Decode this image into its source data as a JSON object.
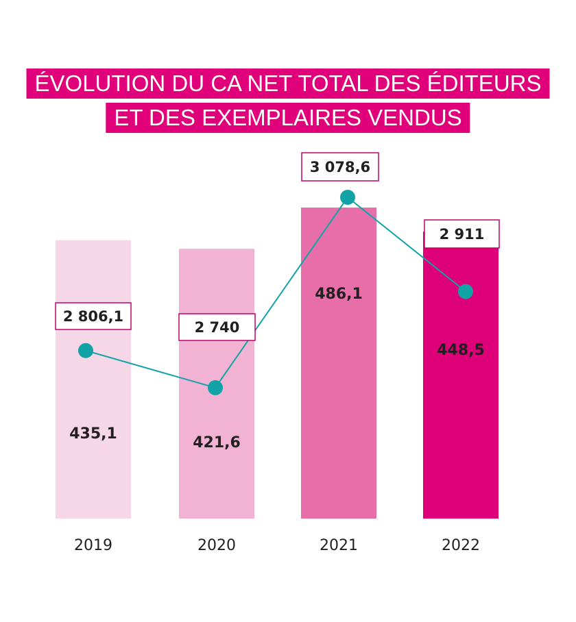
{
  "title_lines": [
    "ÉVOLUTION DU CA NET TOTAL DES ÉDITEURS",
    "ET DES EXEMPLAIRES VENDUS"
  ],
  "colors": {
    "title_bg": "#e0007a",
    "line": "#12a3a7",
    "box_border": "#c0006a",
    "bars": [
      "#f6d7e7",
      "#f2b2d3",
      "#e76ea8",
      "#de0079"
    ]
  },
  "chart_data": {
    "type": "bar",
    "categories": [
      "2019",
      "2020",
      "2021",
      "2022"
    ],
    "series": [
      {
        "type": "bar",
        "values": [
          435.1,
          421.6,
          486.1,
          448.5
        ],
        "labels": [
          "435,1",
          "421,6",
          "486,1",
          "448,5"
        ]
      },
      {
        "type": "line",
        "values": [
          2806.1,
          2740,
          3078.6,
          2911
        ],
        "labels": [
          "2 806,1",
          "2 740",
          "3 078,6",
          "2 911"
        ]
      }
    ],
    "xlabel": "",
    "ylabel": "",
    "grid": false
  }
}
